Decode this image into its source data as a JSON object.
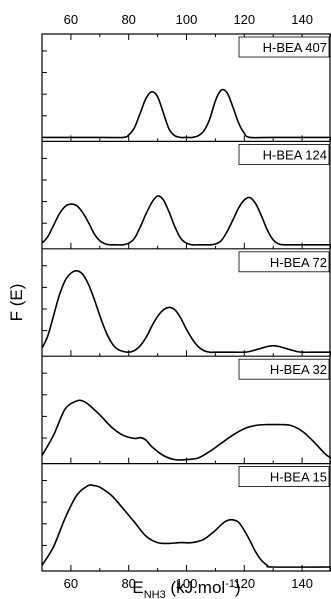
{
  "chart_data": {
    "type": "line",
    "xlabel": "E",
    "xlabel_sub": "NH3",
    "xlabel_unit": "(kJ.mol",
    "xlabel_unit_sup": "-1",
    "xlabel_unit_close": ")",
    "ylabel": "F (E)",
    "xlim": [
      50,
      150
    ],
    "x_ticks": [
      60,
      80,
      100,
      120,
      140
    ],
    "grid": false,
    "panels": [
      {
        "label": "H-BEA 407",
        "x": [
          50,
          70,
          78,
          80,
          82,
          84,
          86,
          88,
          90,
          92,
          94,
          96,
          98,
          100,
          102,
          104,
          106,
          108,
          110,
          112,
          114,
          116,
          118,
          120,
          122,
          130,
          150
        ],
        "y": [
          0,
          0,
          0,
          0.03,
          0.12,
          0.3,
          0.48,
          0.56,
          0.5,
          0.3,
          0.1,
          0.02,
          0,
          0,
          0,
          0.02,
          0.08,
          0.22,
          0.45,
          0.58,
          0.55,
          0.38,
          0.18,
          0.05,
          0,
          0,
          0
        ]
      },
      {
        "label": "H-BEA 124",
        "x": [
          50,
          52,
          54,
          56,
          58,
          60,
          62,
          64,
          66,
          68,
          70,
          72,
          74,
          76,
          78,
          80,
          82,
          84,
          86,
          88,
          90,
          92,
          94,
          96,
          98,
          100,
          102,
          104,
          106,
          108,
          110,
          112,
          114,
          116,
          118,
          120,
          122,
          124,
          126,
          128,
          130,
          132,
          135,
          150
        ],
        "y": [
          0.02,
          0.1,
          0.24,
          0.38,
          0.47,
          0.5,
          0.48,
          0.4,
          0.28,
          0.14,
          0.05,
          0.01,
          0,
          0,
          0,
          0.02,
          0.08,
          0.22,
          0.38,
          0.52,
          0.6,
          0.55,
          0.4,
          0.22,
          0.08,
          0.02,
          0,
          0,
          0,
          0,
          0.01,
          0.05,
          0.16,
          0.3,
          0.45,
          0.55,
          0.58,
          0.5,
          0.35,
          0.18,
          0.06,
          0.01,
          0,
          0
        ]
      },
      {
        "label": "H-BEA 72",
        "x": [
          50,
          52,
          54,
          56,
          58,
          60,
          62,
          64,
          66,
          68,
          70,
          72,
          74,
          76,
          78,
          80,
          82,
          84,
          86,
          88,
          90,
          92,
          94,
          96,
          98,
          100,
          102,
          104,
          106,
          108,
          110,
          115,
          120,
          122,
          124,
          126,
          128,
          130,
          132,
          134,
          136,
          138,
          140,
          145,
          150
        ],
        "y": [
          0.05,
          0.2,
          0.45,
          0.7,
          0.88,
          0.97,
          1.0,
          0.96,
          0.84,
          0.66,
          0.45,
          0.26,
          0.12,
          0.04,
          0.01,
          0,
          0.02,
          0.08,
          0.18,
          0.32,
          0.44,
          0.52,
          0.55,
          0.52,
          0.42,
          0.28,
          0.16,
          0.07,
          0.02,
          0,
          0,
          0,
          0,
          0.01,
          0.03,
          0.05,
          0.07,
          0.08,
          0.07,
          0.05,
          0.03,
          0.01,
          0,
          0,
          0
        ]
      },
      {
        "label": "H-BEA 32",
        "x": [
          50,
          54,
          58,
          62,
          64,
          66,
          70,
          74,
          78,
          82,
          84,
          86,
          88,
          92,
          96,
          100,
          104,
          108,
          112,
          116,
          120,
          124,
          128,
          132,
          136,
          140,
          144,
          148,
          150
        ],
        "y": [
          0.05,
          0.3,
          0.62,
          0.72,
          0.72,
          0.68,
          0.55,
          0.4,
          0.3,
          0.26,
          0.27,
          0.24,
          0.16,
          0.05,
          0,
          0,
          0.02,
          0.1,
          0.2,
          0.3,
          0.38,
          0.42,
          0.43,
          0.43,
          0.42,
          0.35,
          0.22,
          0.07,
          0.02
        ]
      },
      {
        "label": "H-BEA 15",
        "x": [
          50,
          54,
          58,
          62,
          66,
          68,
          70,
          74,
          78,
          82,
          86,
          90,
          94,
          98,
          102,
          106,
          110,
          112,
          114,
          116,
          118,
          120,
          122,
          124,
          126,
          128,
          130,
          150
        ],
        "y": [
          0.02,
          0.25,
          0.6,
          0.88,
          1.0,
          1.0,
          0.98,
          0.88,
          0.72,
          0.55,
          0.38,
          0.3,
          0.29,
          0.3,
          0.3,
          0.34,
          0.45,
          0.52,
          0.57,
          0.58,
          0.55,
          0.45,
          0.32,
          0.18,
          0.08,
          0.02,
          0,
          0
        ]
      }
    ]
  }
}
